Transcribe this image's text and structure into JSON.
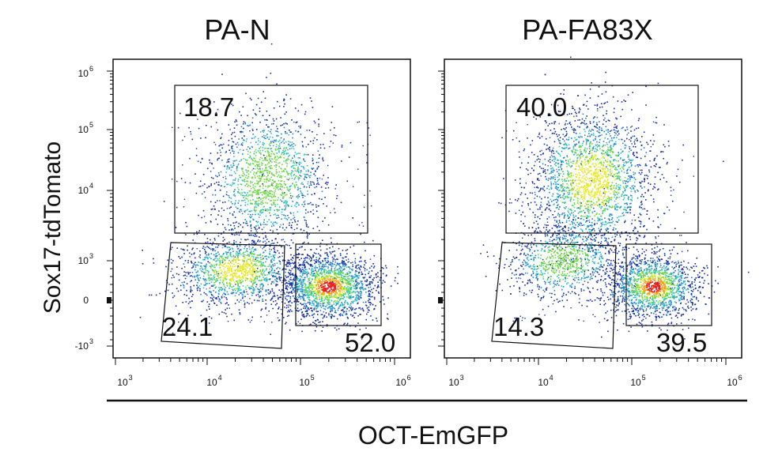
{
  "chart_data": {
    "type": "scatter",
    "subtype": "flow-cytometry-density-dot-plot",
    "xlabel": "OCT-EmGFP",
    "ylabel": "Sox17-tdTomato",
    "x_scale": "biexponential",
    "y_scale": "biexponential",
    "x_ticks": [
      {
        "base": "10",
        "exp": "3"
      },
      {
        "base": "10",
        "exp": "4"
      },
      {
        "base": "10",
        "exp": "5"
      },
      {
        "base": "10",
        "exp": "6"
      }
    ],
    "y_ticks": [
      {
        "base": "10",
        "exp": "6"
      },
      {
        "base": "10",
        "exp": "5"
      },
      {
        "base": "10",
        "exp": "4"
      },
      {
        "base": "10",
        "exp": "3"
      },
      {
        "base": "0",
        "exp": ""
      },
      {
        "base": "-10",
        "exp": "3"
      }
    ],
    "density_colors": [
      "#1a2fa3",
      "#2a7fd0",
      "#35c0c0",
      "#6fd84a",
      "#e8e830",
      "#f5a020",
      "#e8221c"
    ],
    "panels": [
      {
        "title": "PA-N",
        "gates": [
          {
            "name": "upper",
            "label": "18.7",
            "percent": 18.7
          },
          {
            "name": "lower-left",
            "label": "24.1",
            "percent": 24.1
          },
          {
            "name": "lower-right",
            "label": "52.0",
            "percent": 52.0
          }
        ]
      },
      {
        "title": "PA-FA83X",
        "gates": [
          {
            "name": "upper",
            "label": "40.0",
            "percent": 40.0
          },
          {
            "name": "lower-left",
            "label": "14.3",
            "percent": 14.3
          },
          {
            "name": "lower-right",
            "label": "39.5",
            "percent": 39.5
          }
        ]
      }
    ]
  }
}
